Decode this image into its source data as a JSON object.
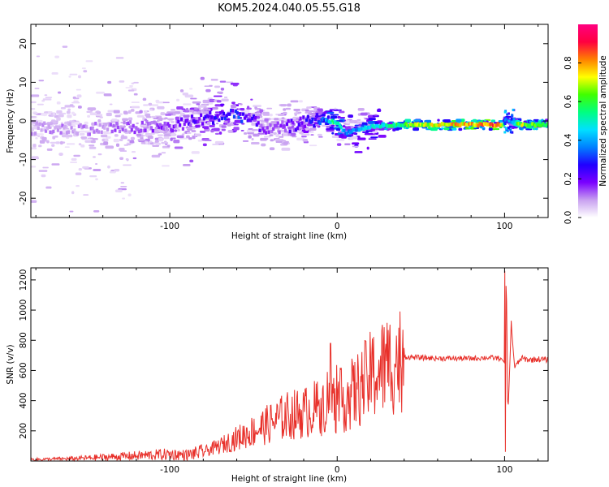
{
  "title": "KOM5.2024.040.05.55.G18",
  "chart_data": [
    {
      "type": "heatmap",
      "xlabel": "Height of straight line (km)",
      "ylabel": "Frequency (Hz)",
      "xlim": [
        -183,
        126
      ],
      "ylim": [
        -25,
        25
      ],
      "xticks": [
        -100,
        0,
        100
      ],
      "yticks": [
        -20,
        -10,
        0,
        10,
        20
      ],
      "colorbar": {
        "label": "Normalized spectral amplitude",
        "range": [
          0,
          1
        ],
        "ticks": [
          "0.0",
          "0.2",
          "0.4",
          "0.6",
          "0.8"
        ],
        "colormap": [
          "#ffffff",
          "#c8a0f0",
          "#7a00ff",
          "#2000ff",
          "#0080ff",
          "#00e0ff",
          "#00ff80",
          "#40ff00",
          "#ffff00",
          "#ff8000",
          "#ff0040",
          "#ff0080"
        ]
      },
      "ridge": [
        {
          "x": -150,
          "f": -2.0,
          "amp": 0.1
        },
        {
          "x": -100,
          "f": -1.5,
          "amp": 0.15
        },
        {
          "x": -80,
          "f": 0.5,
          "amp": 0.22
        },
        {
          "x": -60,
          "f": 2.0,
          "amp": 0.28
        },
        {
          "x": -40,
          "f": -2.5,
          "amp": 0.12
        },
        {
          "x": -20,
          "f": -0.5,
          "amp": 0.22
        },
        {
          "x": -10,
          "f": 0.5,
          "amp": 0.3
        },
        {
          "x": 0,
          "f": -0.5,
          "amp": 0.55
        },
        {
          "x": 5,
          "f": -3.0,
          "amp": 0.35
        },
        {
          "x": 20,
          "f": -1.5,
          "amp": 0.45
        },
        {
          "x": 40,
          "f": -1.0,
          "amp": 0.6
        },
        {
          "x": 60,
          "f": -1.0,
          "amp": 0.75
        },
        {
          "x": 80,
          "f": -1.0,
          "amp": 0.8
        },
        {
          "x": 98,
          "f": -1.0,
          "amp": 0.85
        },
        {
          "x": 102,
          "f": 0.0,
          "amp": 0.3
        },
        {
          "x": 110,
          "f": -1.0,
          "amp": 0.7
        },
        {
          "x": 126,
          "f": -1.0,
          "amp": 0.6
        }
      ]
    },
    {
      "type": "line",
      "xlabel": "Height of straight line (km)",
      "ylabel": "SNR (v/v)",
      "xlim": [
        -183,
        126
      ],
      "ylim": [
        0,
        1280
      ],
      "xticks": [
        -100,
        0,
        100
      ],
      "yticks": [
        200,
        400,
        600,
        800,
        1000,
        1200
      ],
      "color": "#e8302a",
      "x": [
        -183,
        -160,
        -140,
        -120,
        -100,
        -90,
        -80,
        -70,
        -60,
        -50,
        -40,
        -30,
        -20,
        -10,
        -5,
        0,
        10,
        15,
        20,
        30,
        40,
        50,
        60,
        70,
        80,
        90,
        98,
        100,
        101,
        102,
        104,
        106,
        110,
        115,
        120,
        126
      ],
      "y": [
        10,
        15,
        25,
        35,
        45,
        40,
        60,
        100,
        150,
        200,
        250,
        300,
        320,
        360,
        420,
        380,
        450,
        500,
        560,
        640,
        690,
        685,
        680,
        680,
        680,
        685,
        680,
        650,
        1250,
        300,
        900,
        620,
        680,
        670,
        675,
        670
      ],
      "peaks": [
        {
          "x": -4,
          "y": 780
        },
        {
          "x": 100,
          "y": 1260
        },
        {
          "x": 100.5,
          "y": 60
        },
        {
          "x": 104,
          "y": 930
        }
      ]
    }
  ]
}
